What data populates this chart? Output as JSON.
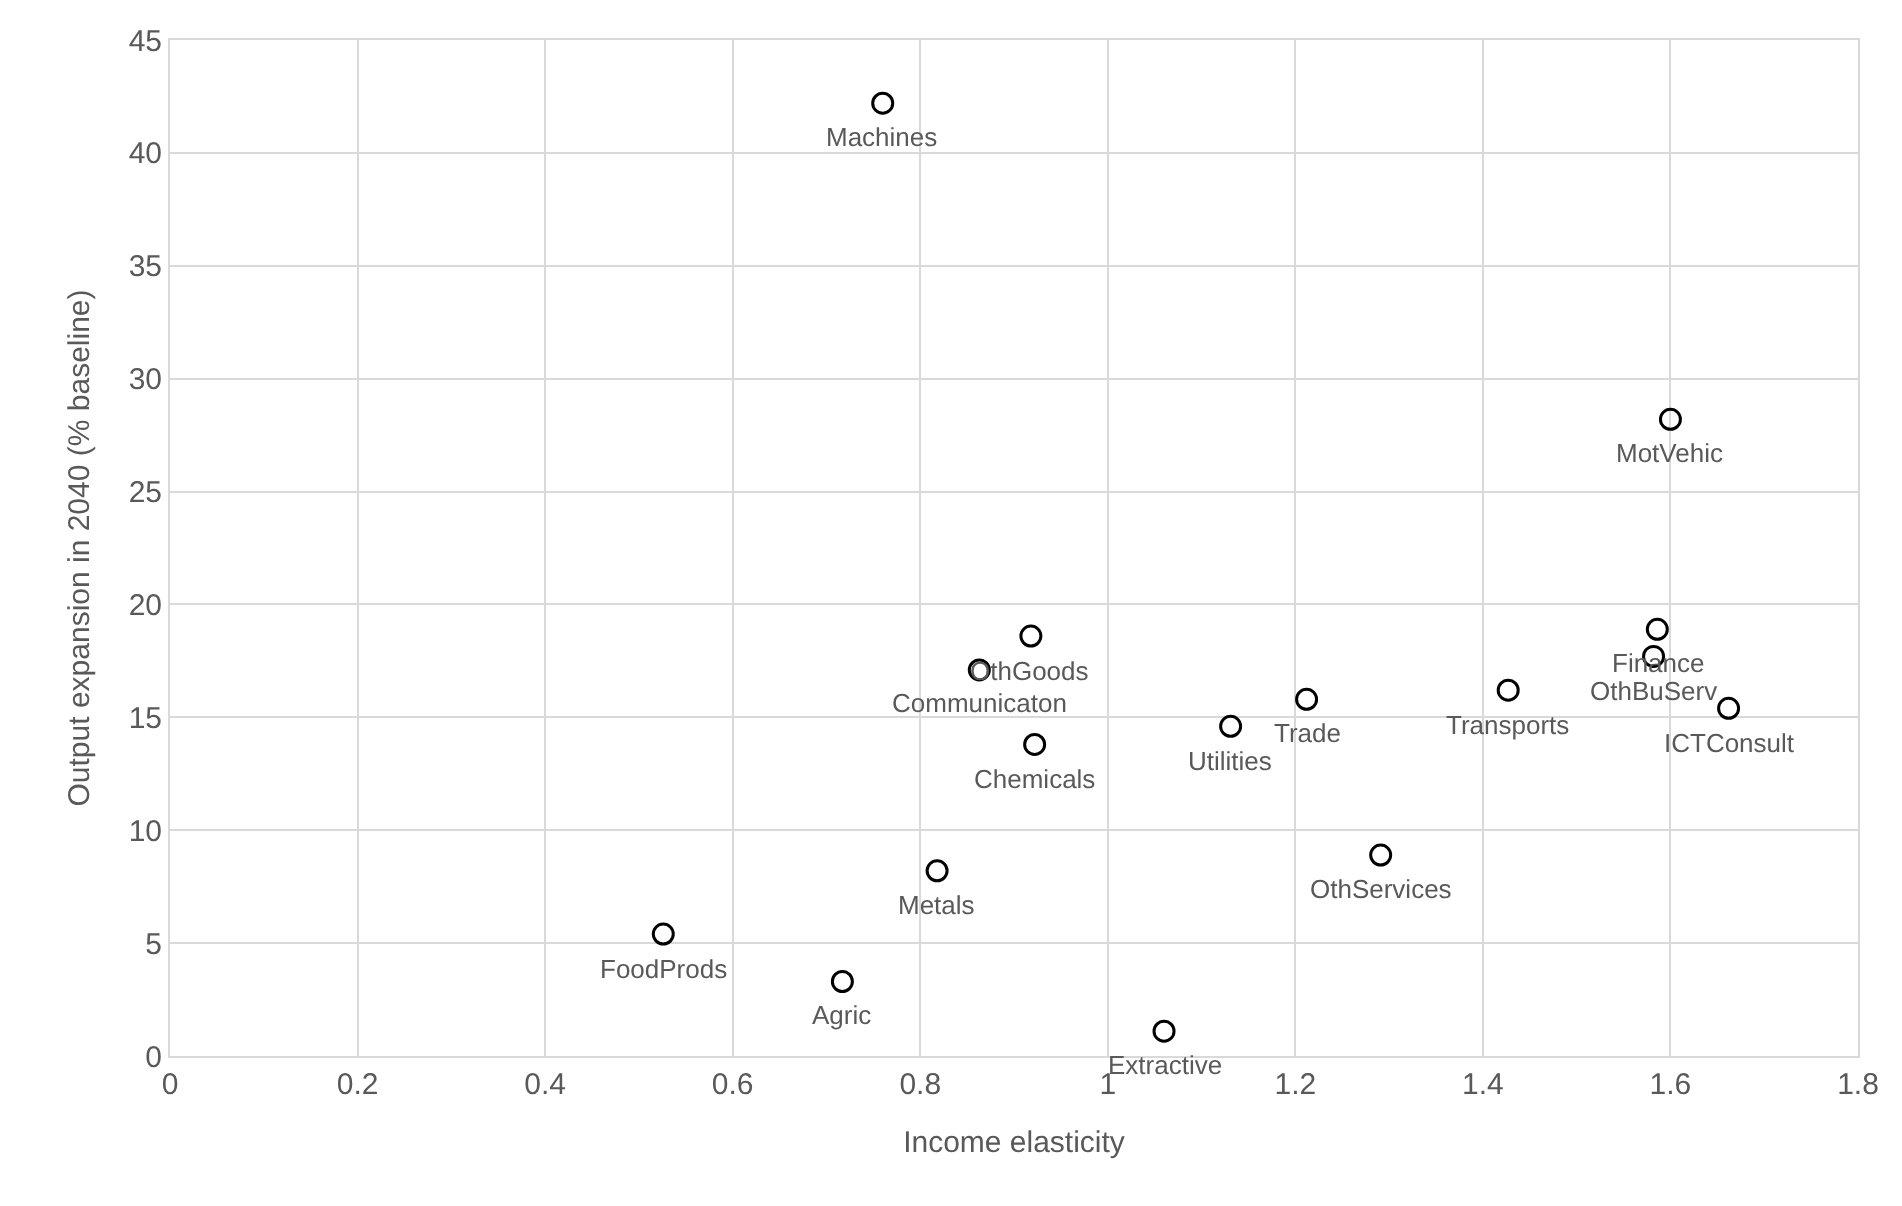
{
  "chart_data": {
    "type": "scatter",
    "xlabel": "Income elasticity",
    "ylabel": "Output expansion in 2040 (% baseline)",
    "x": [
      0.76,
      1.6,
      0.526,
      0.717,
      0.818,
      0.918,
      0.863,
      0.922,
      1.131,
      1.212,
      1.427,
      1.586,
      1.582,
      1.662,
      1.291,
      1.06
    ],
    "series": [
      {
        "color": "#000000",
        "values": [
          42.2,
          28.2,
          5.4,
          3.3,
          8.2,
          18.6,
          17.1,
          13.8,
          14.6,
          15.8,
          16.2,
          18.9,
          17.7,
          15.4,
          8.9,
          1.1
        ]
      }
    ],
    "annotations": [
      {
        "text": "Machines",
        "x": 0.76,
        "y": 42.2
      },
      {
        "text": "MotVehic",
        "x": 1.6,
        "y": 28.2
      },
      {
        "text": "FoodProds",
        "x": 0.526,
        "y": 5.4
      },
      {
        "text": "Agric",
        "x": 0.717,
        "y": 3.3
      },
      {
        "text": "Metals",
        "x": 0.818,
        "y": 8.2
      },
      {
        "text": "OthGoods",
        "x": 0.918,
        "y": 18.6
      },
      {
        "text": "Communicaton",
        "x": 0.863,
        "y": 17.1
      },
      {
        "text": "Chemicals",
        "x": 0.922,
        "y": 13.8
      },
      {
        "text": "Utilities",
        "x": 1.131,
        "y": 14.6
      },
      {
        "text": "Trade",
        "x": 1.212,
        "y": 15.8
      },
      {
        "text": "Transports",
        "x": 1.427,
        "y": 16.2
      },
      {
        "text": "Finance",
        "x": 1.586,
        "y": 18.9
      },
      {
        "text": "OthBuServ",
        "x": 1.582,
        "y": 17.7
      },
      {
        "text": "ICTConsult",
        "x": 1.662,
        "y": 15.4
      },
      {
        "text": "OthServices",
        "x": 1.291,
        "y": 8.9
      },
      {
        "text": "Extractive",
        "x": 1.06,
        "y": 1.1
      }
    ],
    "xlim": [
      0,
      1.8
    ],
    "xticks": [
      0,
      0.2,
      0.4,
      0.6,
      0.8,
      {
        "value": 1,
        "label": "1"
      },
      1.2,
      1.4,
      1.6,
      1.8
    ],
    "ylim": [
      0,
      45
    ],
    "yticks": [
      0,
      5,
      10,
      15,
      20,
      25,
      30,
      35,
      40,
      45
    ],
    "grid": true,
    "marker": "circle"
  }
}
